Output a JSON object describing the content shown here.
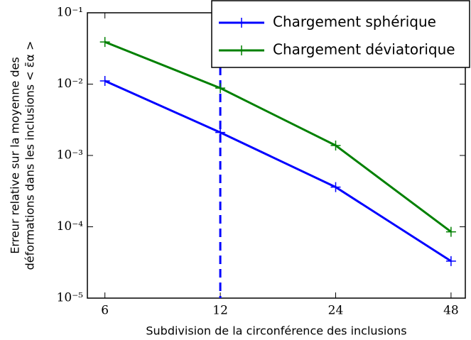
{
  "chart_data": {
    "type": "line",
    "xlabel": "Subdivision de la circonférence des inclusions",
    "ylabel": [
      "Erreur relative sur la moyenne des",
      "déformations dans les inclusions < ε̄α >"
    ],
    "x": [
      6,
      12,
      24,
      48
    ],
    "series": [
      {
        "name": "Chargement sphérique",
        "color": "#0000ff",
        "values": [
          0.0111,
          0.0021,
          0.00036,
          3.3e-05
        ]
      },
      {
        "name": "Chargement déviatorique",
        "color": "#008000",
        "values": [
          0.039,
          0.0088,
          0.00138,
          8.5e-05
        ]
      }
    ],
    "xscale": "log",
    "yscale": "log",
    "xlim": [
      5.4,
      52.3
    ],
    "ylim": [
      1e-05,
      0.1
    ],
    "xticks": [
      6,
      12,
      24,
      48
    ],
    "yticks": [
      {
        "value": 1e-05,
        "label": "10⁻⁵"
      },
      {
        "value": 0.0001,
        "label": "10⁻⁴"
      },
      {
        "value": 0.001,
        "label": "10⁻³"
      },
      {
        "value": 0.01,
        "label": "10⁻²"
      },
      {
        "value": 0.1,
        "label": "10⁻¹"
      }
    ],
    "vline": 12,
    "vline_color": "#0000ff",
    "legend": "upper right"
  }
}
